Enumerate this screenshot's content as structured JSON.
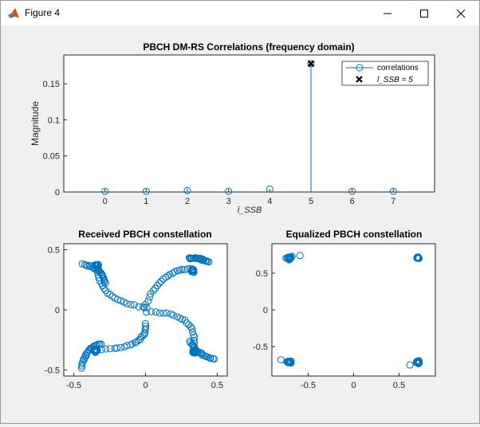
{
  "window": {
    "title": "Figure 4",
    "controls": {
      "minimize_icon": "minimize-icon",
      "maximize_icon": "maximize-icon",
      "close_icon": "close-icon"
    },
    "app_icon": "matlab-icon"
  },
  "colors": {
    "series": "#0072BD",
    "marker_x": "#000000",
    "axes": "#262626",
    "background": "#f0f0f0",
    "plot_bg": "#ffffff"
  },
  "chart_data": [
    {
      "type": "stem",
      "title": "PBCH DM-RS Correlations (frequency domain)",
      "xlabel": "ī_SSB",
      "ylabel": "Magnitude",
      "xlim": [
        -1,
        8
      ],
      "ylim": [
        0,
        0.19
      ],
      "xticks": [
        0,
        1,
        2,
        3,
        4,
        5,
        6,
        7
      ],
      "xtick_labels": [
        "0",
        "1",
        "2",
        "3",
        "4",
        "5",
        "6",
        "7"
      ],
      "yticks": [
        0,
        0.05,
        0.1,
        0.15
      ],
      "ytick_labels": [
        "0",
        "0.05",
        "0.1",
        "0.15"
      ],
      "legend_position": "top-right",
      "series": [
        {
          "name": "correlations",
          "x": [
            0,
            1,
            2,
            3,
            4,
            5,
            6,
            7
          ],
          "y": [
            0.001,
            0.001,
            0.002,
            0.001,
            0.004,
            0.178,
            0.001,
            0.001
          ]
        },
        {
          "name": "ī_SSB = 5",
          "x": [
            5
          ],
          "y": [
            0.178
          ]
        }
      ]
    },
    {
      "type": "scatter",
      "title": "Received PBCH constellation",
      "xlim": [
        -0.57,
        0.57
      ],
      "ylim": [
        -0.55,
        0.55
      ],
      "xticks": [
        -0.5,
        0,
        0.5
      ],
      "xtick_labels": [
        "-0.5",
        "0",
        "0.5"
      ],
      "yticks": [
        -0.5,
        0,
        0.5
      ],
      "ytick_labels": [
        "-0.5",
        "0",
        "0.5"
      ],
      "arms": [
        {
          "start": [
            -0.34,
            0.37
          ],
          "end": [
            0.01,
            0.02
          ],
          "curve": [
            -0.33,
            0.06
          ]
        },
        {
          "start": [
            0.33,
            0.34
          ],
          "end": [
            -0.01,
            0.02
          ],
          "curve": [
            0.12,
            0.36
          ]
        },
        {
          "start": [
            0.34,
            -0.34
          ],
          "end": [
            0.01,
            -0.02
          ],
          "curve": [
            0.37,
            0.0
          ]
        },
        {
          "start": [
            -0.34,
            -0.33
          ],
          "end": [
            0.0,
            -0.12
          ],
          "curve": [
            0.02,
            -0.32
          ]
        },
        {
          "start": [
            -0.28,
            0.22
          ],
          "end": [
            -0.44,
            0.38
          ],
          "curve": [
            -0.3,
            0.35
          ]
        },
        {
          "start": [
            0.3,
            0.43
          ],
          "end": [
            0.44,
            0.4
          ],
          "curve": [
            0.37,
            0.44
          ]
        },
        {
          "start": [
            0.31,
            -0.26
          ],
          "end": [
            0.48,
            -0.41
          ],
          "curve": [
            0.36,
            -0.38
          ]
        },
        {
          "start": [
            -0.31,
            -0.28
          ],
          "end": [
            -0.45,
            -0.48
          ],
          "curve": [
            -0.41,
            -0.3
          ]
        }
      ],
      "clusters": [
        {
          "center": [
            -0.34,
            0.37
          ],
          "count": 14,
          "spread": 0.022
        },
        {
          "center": [
            0.33,
            0.33
          ],
          "count": 14,
          "spread": 0.022
        },
        {
          "center": [
            0.34,
            -0.35
          ],
          "count": 14,
          "spread": 0.022
        },
        {
          "center": [
            -0.35,
            -0.34
          ],
          "count": 14,
          "spread": 0.022
        }
      ]
    },
    {
      "type": "scatter",
      "title": "Equalized PBCH constellation",
      "xlim": [
        -0.9,
        0.9
      ],
      "ylim": [
        -0.9,
        0.9
      ],
      "xticks": [
        -0.5,
        0,
        0.5
      ],
      "xtick_labels": [
        "-0.5",
        "0",
        "0.5"
      ],
      "yticks": [
        -0.5,
        0,
        0.5
      ],
      "ytick_labels": [
        "-0.5",
        "0",
        "0.5"
      ],
      "clusters": [
        {
          "center": [
            -0.71,
            0.71
          ],
          "count": 16,
          "spread": 0.04
        },
        {
          "center": [
            0.71,
            0.71
          ],
          "count": 14,
          "spread": 0.018
        },
        {
          "center": [
            -0.71,
            -0.71
          ],
          "count": 16,
          "spread": 0.035
        },
        {
          "center": [
            0.71,
            -0.71
          ],
          "count": 14,
          "spread": 0.03
        }
      ]
    }
  ]
}
